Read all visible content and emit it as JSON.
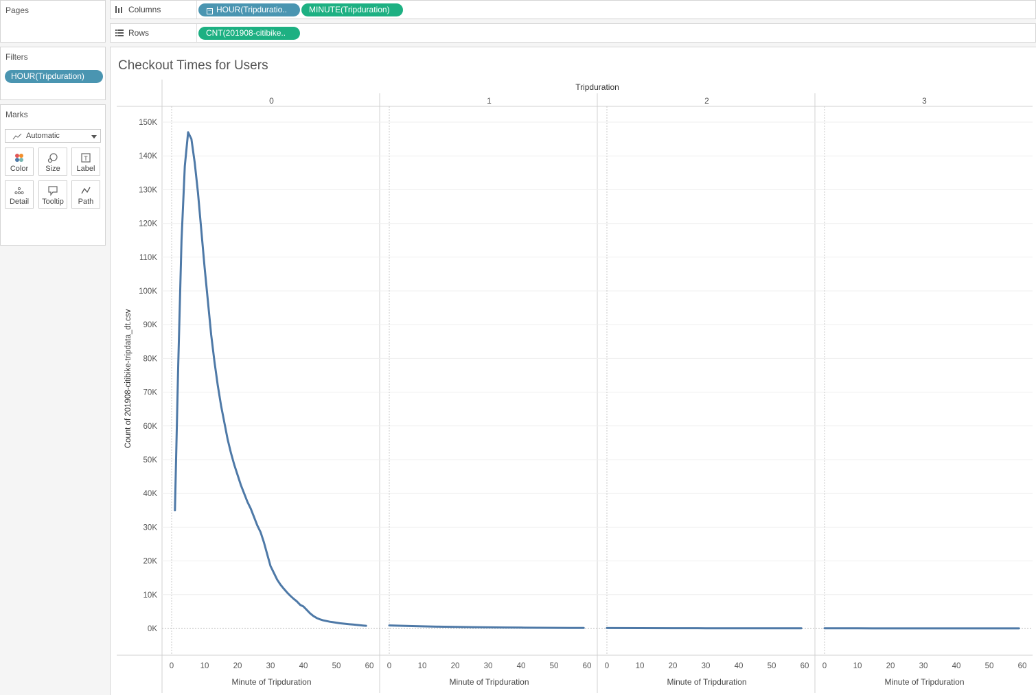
{
  "pages": {
    "title": "Pages"
  },
  "filters": {
    "title": "Filters",
    "pill": "HOUR(Tripduration)"
  },
  "marks": {
    "title": "Marks",
    "type": "Automatic",
    "buttons": [
      {
        "label": "Color",
        "icon": "color-icon"
      },
      {
        "label": "Size",
        "icon": "size-icon"
      },
      {
        "label": "Label",
        "icon": "label-icon"
      },
      {
        "label": "Detail",
        "icon": "detail-icon"
      },
      {
        "label": "Tooltip",
        "icon": "tooltip-icon"
      },
      {
        "label": "Path",
        "icon": "path-icon"
      }
    ]
  },
  "shelves": {
    "columns": {
      "label": "Columns",
      "pills": [
        "HOUR(Tripduratio..",
        "MINUTE(Tripduration)"
      ]
    },
    "rows": {
      "label": "Rows",
      "pills": [
        "CNT(201908-citibike.."
      ]
    }
  },
  "colors": {
    "line": "#4e79a7",
    "pill_blue": "#4a95b1",
    "pill_green": "#1db082"
  },
  "chart_data": {
    "type": "line",
    "title": "Checkout Times for Users",
    "column_header": "Tripduration",
    "panels": [
      "0",
      "1",
      "2",
      "3"
    ],
    "xlabel": "Minute of Tripduration",
    "ylabel": "Count of 201908-citibike-tripdata_dt.csv",
    "xlim": [
      0,
      60
    ],
    "ylim": [
      0,
      150000
    ],
    "x_ticks": [
      0,
      10,
      20,
      30,
      40,
      50,
      60
    ],
    "y_ticks": [
      "0K",
      "10K",
      "20K",
      "30K",
      "40K",
      "50K",
      "60K",
      "70K",
      "80K",
      "90K",
      "100K",
      "110K",
      "120K",
      "130K",
      "140K",
      "150K"
    ],
    "grid": true,
    "series": [
      {
        "panel": "0",
        "x": [
          1,
          2,
          3,
          4,
          5,
          6,
          7,
          8,
          9,
          10,
          11,
          12,
          13,
          14,
          15,
          16,
          17,
          18,
          19,
          20,
          21,
          22,
          23,
          24,
          25,
          26,
          27,
          28,
          29,
          30,
          31,
          32,
          33,
          34,
          35,
          36,
          37,
          38,
          39,
          40,
          41,
          42,
          43,
          44,
          45,
          46,
          47,
          48,
          49,
          50,
          51,
          52,
          53,
          54,
          55,
          56,
          57,
          58,
          59
        ],
        "y": [
          35000,
          78000,
          115000,
          137000,
          147000,
          145000,
          138000,
          129000,
          118000,
          107000,
          97000,
          87000,
          79000,
          72000,
          66000,
          61000,
          56000,
          52000,
          48500,
          45500,
          42500,
          40000,
          37500,
          35500,
          33000,
          30500,
          28500,
          25500,
          22000,
          18500,
          16500,
          14500,
          13000,
          11800,
          10700,
          9700,
          8800,
          8000,
          7000,
          6500,
          5500,
          4500,
          3700,
          3100,
          2700,
          2400,
          2200,
          2000,
          1850,
          1700,
          1550,
          1450,
          1350,
          1250,
          1150,
          1050,
          950,
          880,
          800
        ]
      },
      {
        "panel": "1",
        "x": [
          0,
          5,
          10,
          15,
          20,
          25,
          30,
          35,
          40,
          45,
          50,
          55,
          59
        ],
        "y": [
          900,
          750,
          620,
          520,
          450,
          380,
          330,
          280,
          240,
          210,
          180,
          160,
          140
        ]
      },
      {
        "panel": "2",
        "x": [
          0,
          10,
          20,
          30,
          40,
          50,
          59
        ],
        "y": [
          120,
          100,
          85,
          70,
          60,
          50,
          40
        ]
      },
      {
        "panel": "3",
        "x": [
          0,
          10,
          20,
          30,
          40,
          50,
          59
        ],
        "y": [
          40,
          35,
          30,
          25,
          22,
          20,
          18
        ]
      }
    ]
  }
}
